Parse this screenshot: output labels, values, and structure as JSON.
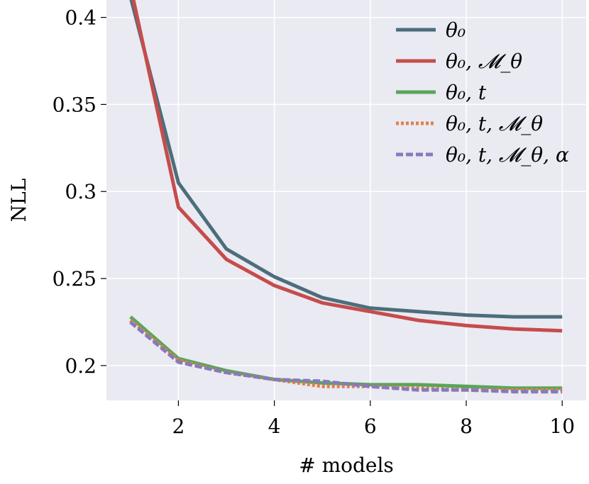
{
  "chart_data": {
    "type": "line",
    "title": "",
    "xlabel": "# models",
    "ylabel": "NLL",
    "xlim": [
      0.5,
      10.5
    ],
    "ylim": [
      0.18,
      0.41
    ],
    "xticks": [
      2,
      4,
      6,
      8,
      10
    ],
    "yticks": [
      0.2,
      0.25,
      0.3,
      0.35,
      0.4
    ],
    "xtick_labels": [
      "2",
      "4",
      "6",
      "8",
      "10"
    ],
    "ytick_labels": [
      "0.2",
      "0.25",
      "0.3",
      "0.35",
      "0.4"
    ],
    "grid": true,
    "background": "#eaeaf2",
    "legend_position": "top-right",
    "x": [
      1,
      2,
      3,
      4,
      5,
      6,
      7,
      8,
      9,
      10
    ],
    "series": [
      {
        "name": "θ₀",
        "color": "#4c6e7c",
        "style": "solid",
        "values": [
          0.412,
          0.305,
          0.267,
          0.251,
          0.239,
          0.233,
          0.231,
          0.229,
          0.228,
          0.228
        ]
      },
      {
        "name": "θ₀, 𝓜_θ",
        "color": "#c64c4c",
        "style": "solid",
        "values": [
          0.418,
          0.291,
          0.261,
          0.246,
          0.236,
          0.231,
          0.226,
          0.223,
          0.221,
          0.22
        ]
      },
      {
        "name": "θ₀, t",
        "color": "#5aa55a",
        "style": "solid",
        "values": [
          0.228,
          0.204,
          0.197,
          0.192,
          0.19,
          0.189,
          0.189,
          0.188,
          0.187,
          0.187
        ]
      },
      {
        "name": "θ₀, t, 𝓜_θ",
        "color": "#e0804a",
        "style": "dotted",
        "values": [
          0.226,
          0.203,
          0.196,
          0.192,
          0.188,
          0.188,
          0.187,
          0.186,
          0.186,
          0.186
        ]
      },
      {
        "name": "θ₀, t, 𝓜_θ, α",
        "color": "#8879be",
        "style": "dashed",
        "values": [
          0.225,
          0.202,
          0.196,
          0.192,
          0.191,
          0.188,
          0.186,
          0.186,
          0.185,
          0.185
        ]
      }
    ]
  }
}
